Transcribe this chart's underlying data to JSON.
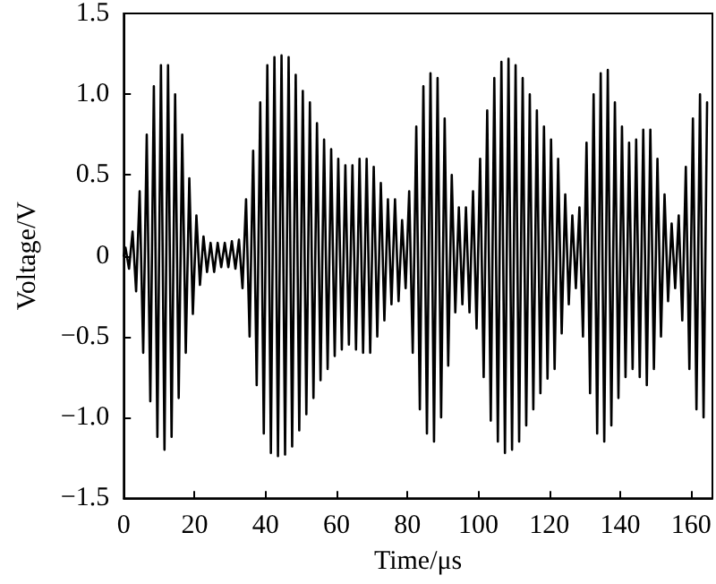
{
  "chart_data": {
    "type": "line",
    "xlabel": "Time/μs",
    "ylabel": "Voltage/V",
    "xlim": [
      0,
      166
    ],
    "xticks": [
      0,
      20,
      40,
      60,
      80,
      100,
      120,
      140,
      160
    ],
    "ylim": [
      -1.5,
      1.5
    ],
    "yticks": [
      {
        "value": -1.5,
        "label": "−1.5"
      },
      {
        "value": -1.0,
        "label": "−1.0"
      },
      {
        "value": -0.5,
        "label": "−0.5"
      },
      {
        "value": 0,
        "label": "0"
      },
      {
        "value": 0.5,
        "label": "0.5"
      },
      {
        "value": 1.0,
        "label": "1.0"
      },
      {
        "value": 1.5,
        "label": "1.5"
      }
    ],
    "grid": false,
    "marker": "none",
    "line_style": "solid",
    "series": [
      {
        "color": "#000000",
        "x": [
          0,
          0.5,
          1.5,
          2.5,
          3.5,
          4.5,
          5.5,
          6.5,
          7.5,
          8.5,
          9.5,
          10.5,
          11.5,
          12.5,
          13.5,
          14.5,
          15.5,
          16.5,
          17.5,
          18.5,
          19.5,
          20.5,
          21.5,
          22.5,
          23.5,
          24.5,
          25.5,
          26.5,
          27.5,
          28.5,
          29.5,
          30.5,
          31.5,
          32.5,
          33.5,
          34.5,
          35.5,
          36.5,
          37.5,
          38.5,
          39.5,
          40.5,
          41.5,
          42.5,
          43.5,
          44.5,
          45.5,
          46.5,
          47.5,
          48.5,
          49.5,
          50.5,
          51.5,
          52.5,
          53.5,
          54.5,
          55.5,
          56.5,
          57.5,
          58.5,
          59.5,
          60.5,
          61.5,
          62.5,
          63.5,
          64.5,
          65.5,
          66.5,
          67.5,
          68.5,
          69.5,
          70.5,
          71.5,
          72.5,
          73.5,
          74.5,
          75.5,
          76.5,
          77.5,
          78.5,
          79.5,
          80.5,
          81.5,
          82.5,
          83.5,
          84.5,
          85.5,
          86.5,
          87.5,
          88.5,
          89.5,
          90.5,
          91.5,
          92.5,
          93.5,
          94.5,
          95.5,
          96.5,
          97.5,
          98.5,
          99.5,
          100.5,
          101.5,
          102.5,
          103.5,
          104.5,
          105.5,
          106.5,
          107.5,
          108.5,
          109.5,
          110.5,
          111.5,
          112.5,
          113.5,
          114.5,
          115.5,
          116.5,
          117.5,
          118.5,
          119.5,
          120.5,
          121.5,
          122.5,
          123.5,
          124.5,
          125.5,
          126.5,
          127.5,
          128.5,
          129.5,
          130.5,
          131.5,
          132.5,
          133.5,
          134.5,
          135.5,
          136.5,
          137.5,
          138.5,
          139.5,
          140.5,
          141.5,
          142.5,
          143.5,
          144.5,
          145.5,
          146.5,
          147.5,
          148.5,
          149.5,
          150.5,
          151.5,
          152.5,
          153.5,
          154.5,
          155.5,
          156.5,
          157.5,
          158.5,
          159.5,
          160.5,
          161.5,
          162.5,
          163.5,
          164.5
        ],
        "values": [
          0,
          0.05,
          -0.08,
          0.15,
          -0.22,
          0.4,
          -0.6,
          0.75,
          -0.9,
          1.05,
          -1.12,
          1.18,
          -1.2,
          1.18,
          -1.12,
          1.0,
          -0.88,
          0.75,
          -0.6,
          0.48,
          -0.36,
          0.25,
          -0.18,
          0.12,
          -0.1,
          0.08,
          -0.1,
          0.08,
          -0.07,
          0.08,
          -0.07,
          0.09,
          -0.08,
          0.1,
          -0.2,
          0.35,
          -0.5,
          0.65,
          -0.8,
          0.95,
          -1.1,
          1.18,
          -1.22,
          1.23,
          -1.24,
          1.24,
          -1.23,
          1.23,
          -1.18,
          1.12,
          -1.08,
          1.02,
          -0.98,
          0.95,
          -0.88,
          0.82,
          -0.77,
          0.72,
          -0.7,
          0.66,
          -0.62,
          0.6,
          -0.58,
          0.56,
          -0.55,
          0.56,
          -0.58,
          0.6,
          -0.6,
          0.6,
          -0.6,
          0.55,
          -0.5,
          0.45,
          -0.4,
          0.35,
          -0.3,
          0.35,
          -0.28,
          0.22,
          -0.2,
          0.4,
          -0.6,
          0.8,
          -0.95,
          1.05,
          -1.1,
          1.13,
          -1.15,
          1.1,
          -1.0,
          0.85,
          -0.68,
          0.5,
          -0.35,
          0.3,
          -0.3,
          0.3,
          -0.35,
          0.4,
          -0.45,
          0.6,
          -0.75,
          0.9,
          -1.02,
          1.1,
          -1.15,
          1.2,
          -1.22,
          1.22,
          -1.2,
          1.18,
          -1.15,
          1.1,
          -1.05,
          1.0,
          -0.95,
          0.9,
          -0.85,
          0.8,
          -0.76,
          0.72,
          -0.7,
          0.6,
          -0.48,
          0.38,
          -0.3,
          0.25,
          -0.2,
          0.3,
          -0.5,
          0.7,
          -0.85,
          1.0,
          -1.1,
          1.13,
          -1.15,
          1.15,
          -1.05,
          0.95,
          -0.88,
          0.8,
          -0.75,
          0.7,
          -0.7,
          0.72,
          -0.75,
          0.78,
          -0.8,
          0.78,
          -0.7,
          0.6,
          -0.5,
          0.38,
          -0.28,
          0.2,
          -0.2,
          0.25,
          -0.4,
          0.55,
          -0.7,
          0.85,
          -0.95,
          1.0,
          -1.0,
          0.95
        ]
      }
    ]
  }
}
